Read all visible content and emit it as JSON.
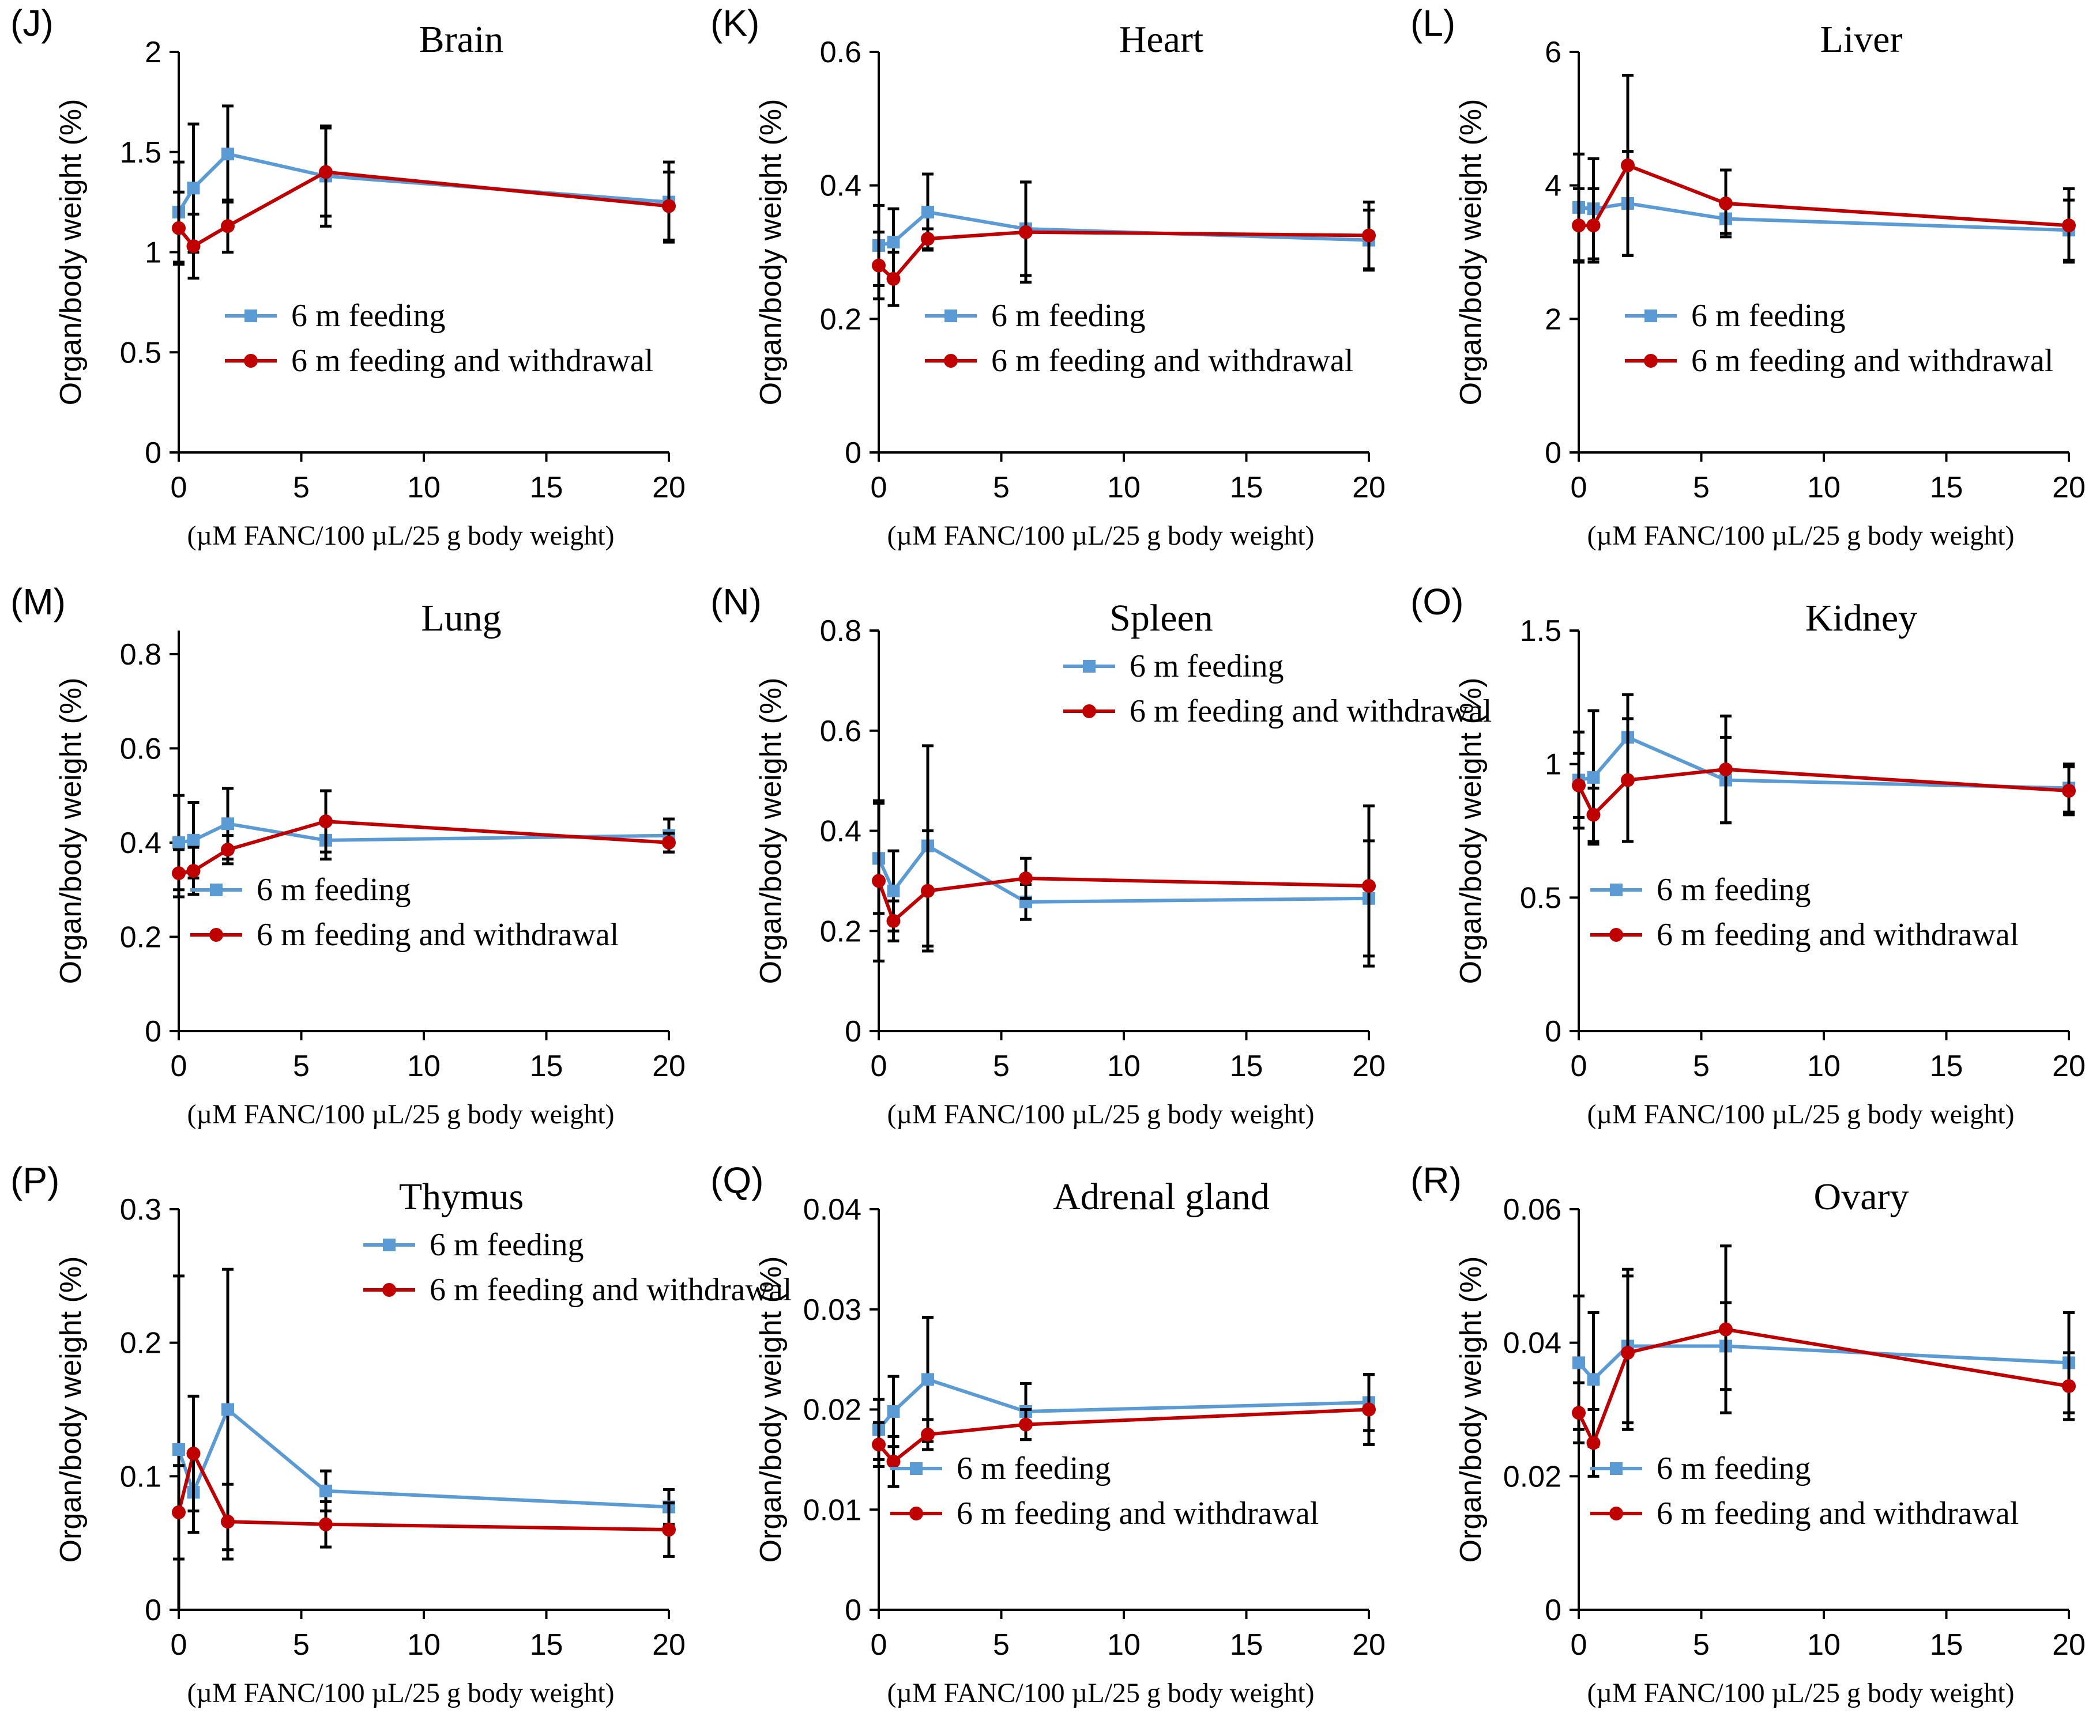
{
  "colors": {
    "feeding": "#5B9BD5",
    "withdrawal": "#C00000",
    "axis": "#000000",
    "error": "#000000"
  },
  "chart_data": [
    {
      "type": "line",
      "letter": "(J)",
      "title": "Brain",
      "ylabel": "Organ/body weight (%)",
      "xlabel": "(µM FANC/100 µL/25 g body weight)",
      "ylim": [
        0,
        2
      ],
      "yticks": [
        0,
        0.5,
        1,
        1.5,
        2
      ],
      "yticklabels": [
        "0",
        "0.5",
        "1",
        "1.5",
        "2"
      ],
      "xlim": [
        0,
        20
      ],
      "xticks": [
        0,
        5,
        10,
        15,
        20
      ],
      "xticklabels": [
        "0",
        "5",
        "10",
        "15",
        "20"
      ],
      "legend": "mid-left",
      "series": [
        {
          "name": "6 m feeding",
          "color": "#5B9BD5",
          "marker": "square",
          "x": [
            0,
            0.6,
            2,
            6,
            20
          ],
          "y": [
            1.2,
            1.32,
            1.49,
            1.38,
            1.25
          ],
          "err": [
            0.25,
            0.32,
            0.24,
            0.25,
            0.2
          ]
        },
        {
          "name": "6 m feeding and withdrawal",
          "color": "#C00000",
          "marker": "circle",
          "x": [
            0,
            0.6,
            2,
            6,
            20
          ],
          "y": [
            1.12,
            1.03,
            1.13,
            1.4,
            1.23
          ],
          "err": [
            0.18,
            0.16,
            0.13,
            0.22,
            0.17
          ]
        }
      ]
    },
    {
      "type": "line",
      "letter": "(K)",
      "title": "Heart",
      "ylabel": "Organ/body weight (%)",
      "xlabel": "(µM FANC/100 µL/25 g body weight)",
      "ylim": [
        0,
        0.6
      ],
      "yticks": [
        0,
        0.2,
        0.4,
        0.6
      ],
      "yticklabels": [
        "0",
        "0.2",
        "0.4",
        "0.6"
      ],
      "xlim": [
        0,
        20
      ],
      "xticks": [
        0,
        5,
        10,
        15,
        20
      ],
      "xticklabels": [
        "0",
        "5",
        "10",
        "15",
        "20"
      ],
      "legend": "mid-left",
      "series": [
        {
          "name": "6 m feeding",
          "color": "#5B9BD5",
          "marker": "square",
          "x": [
            0,
            0.6,
            2,
            6,
            20
          ],
          "y": [
            0.31,
            0.315,
            0.36,
            0.335,
            0.318
          ],
          "err": [
            0.06,
            0.05,
            0.057,
            0.07,
            0.045
          ]
        },
        {
          "name": "6 m feeding and withdrawal",
          "color": "#C00000",
          "marker": "circle",
          "x": [
            0,
            0.6,
            2,
            6,
            20
          ],
          "y": [
            0.28,
            0.26,
            0.32,
            0.33,
            0.325
          ],
          "err": [
            0.05,
            0.04,
            0.015,
            0.075,
            0.05
          ]
        }
      ]
    },
    {
      "type": "line",
      "letter": "(L)",
      "title": "Liver",
      "ylabel": "Organ/body weight (%)",
      "xlabel": "(µM FANC/100 µL/25 g body weight)",
      "ylim": [
        0,
        6
      ],
      "yticks": [
        0,
        2,
        4,
        6
      ],
      "yticklabels": [
        "0",
        "2",
        "4",
        "6"
      ],
      "xlim": [
        0,
        20
      ],
      "xticks": [
        0,
        5,
        10,
        15,
        20
      ],
      "xticklabels": [
        "0",
        "5",
        "10",
        "15",
        "20"
      ],
      "legend": "mid-left",
      "series": [
        {
          "name": "6 m feeding",
          "color": "#5B9BD5",
          "marker": "square",
          "x": [
            0,
            0.6,
            2,
            6,
            20
          ],
          "y": [
            3.67,
            3.65,
            3.73,
            3.5,
            3.33
          ],
          "err": [
            0.8,
            0.75,
            0.78,
            0.22,
            0.45
          ]
        },
        {
          "name": "6 m feeding and withdrawal",
          "color": "#C00000",
          "marker": "circle",
          "x": [
            0,
            0.6,
            2,
            6,
            20
          ],
          "y": [
            3.4,
            3.4,
            4.3,
            3.73,
            3.4
          ],
          "err": [
            0.55,
            0.55,
            1.35,
            0.5,
            0.55
          ]
        }
      ]
    },
    {
      "type": "line",
      "letter": "(M)",
      "title": "Lung",
      "ylabel": "Organ/body weight (%)",
      "xlabel": "(µM FANC/100 µL/25 g body weight)",
      "ylim": [
        0,
        0.85
      ],
      "yticks": [
        0,
        0.2,
        0.4,
        0.6,
        0.8
      ],
      "yticklabels": [
        "0",
        "0.2",
        "0.4",
        "0.6",
        "0.8"
      ],
      "xlim": [
        0,
        20
      ],
      "xticks": [
        0,
        5,
        10,
        15,
        20
      ],
      "xticklabels": [
        "0",
        "5",
        "10",
        "15",
        "20"
      ],
      "legend": "bottom-left",
      "series": [
        {
          "name": "6 m feeding",
          "color": "#5B9BD5",
          "marker": "square",
          "x": [
            0,
            0.6,
            2,
            6,
            20
          ],
          "y": [
            0.4,
            0.405,
            0.44,
            0.405,
            0.415
          ],
          "err": [
            0.1,
            0.08,
            0.075,
            0.04,
            0.035
          ]
        },
        {
          "name": "6 m feeding and withdrawal",
          "color": "#C00000",
          "marker": "circle",
          "x": [
            0,
            0.6,
            2,
            6,
            20
          ],
          "y": [
            0.335,
            0.34,
            0.385,
            0.445,
            0.4
          ],
          "err": [
            0.05,
            0.05,
            0.03,
            0.065,
            0.02
          ]
        }
      ]
    },
    {
      "type": "line",
      "letter": "(N)",
      "title": "Spleen",
      "ylabel": "Organ/body weight (%)",
      "xlabel": "(µM FANC/100 µL/25 g body weight)",
      "ylim": [
        0,
        0.8
      ],
      "yticks": [
        0,
        0.2,
        0.4,
        0.6,
        0.8
      ],
      "yticklabels": [
        "0",
        "0.2",
        "0.4",
        "0.6",
        "0.8"
      ],
      "xlim": [
        0,
        20
      ],
      "xticks": [
        0,
        5,
        10,
        15,
        20
      ],
      "xticklabels": [
        "0",
        "5",
        "10",
        "15",
        "20"
      ],
      "legend": "top-center",
      "series": [
        {
          "name": "6 m feeding",
          "color": "#5B9BD5",
          "marker": "square",
          "x": [
            0,
            0.6,
            2,
            6,
            20
          ],
          "y": [
            0.345,
            0.28,
            0.37,
            0.258,
            0.265
          ],
          "err": [
            0.11,
            0.08,
            0.2,
            0.035,
            0.115
          ]
        },
        {
          "name": "6 m feeding and withdrawal",
          "color": "#C00000",
          "marker": "circle",
          "x": [
            0,
            0.6,
            2,
            6,
            20
          ],
          "y": [
            0.3,
            0.22,
            0.28,
            0.305,
            0.29
          ],
          "err": [
            0.16,
            0.04,
            0.12,
            0.04,
            0.16
          ]
        }
      ]
    },
    {
      "type": "line",
      "letter": "(O)",
      "title": "Kidney",
      "ylabel": "Organ/body weight (%)",
      "xlabel": "(µM FANC/100 µL/25 g body weight)",
      "ylim": [
        0,
        1.5
      ],
      "yticks": [
        0,
        0.5,
        1,
        1.5
      ],
      "yticklabels": [
        "0",
        "0.5",
        "1",
        "1.5"
      ],
      "xlim": [
        0,
        20
      ],
      "xticks": [
        0,
        5,
        10,
        15,
        20
      ],
      "xticklabels": [
        "0",
        "5",
        "10",
        "15",
        "20"
      ],
      "legend": "bottom-left",
      "series": [
        {
          "name": "6 m feeding",
          "color": "#5B9BD5",
          "marker": "square",
          "x": [
            0,
            0.6,
            2,
            6,
            20
          ],
          "y": [
            0.94,
            0.95,
            1.1,
            0.94,
            0.91
          ],
          "err": [
            0.18,
            0.25,
            0.16,
            0.16,
            0.09
          ]
        },
        {
          "name": "6 m feeding and withdrawal",
          "color": "#C00000",
          "marker": "circle",
          "x": [
            0,
            0.6,
            2,
            6,
            20
          ],
          "y": [
            0.92,
            0.81,
            0.94,
            0.98,
            0.9
          ],
          "err": [
            0.12,
            0.1,
            0.23,
            0.2,
            0.09
          ]
        }
      ]
    },
    {
      "type": "line",
      "letter": "(P)",
      "title": "Thymus",
      "ylabel": "Organ/body weight (%)",
      "xlabel": "(µM FANC/100 µL/25 g body weight)",
      "ylim": [
        0,
        0.3
      ],
      "yticks": [
        0,
        0.1,
        0.2,
        0.3
      ],
      "yticklabels": [
        "0",
        "0.1",
        "0.2",
        "0.3"
      ],
      "xlim": [
        0,
        20
      ],
      "xticks": [
        0,
        5,
        10,
        15,
        20
      ],
      "xticklabels": [
        "0",
        "5",
        "10",
        "15",
        "20"
      ],
      "legend": "top-center",
      "series": [
        {
          "name": "6 m feeding",
          "color": "#5B9BD5",
          "marker": "square",
          "x": [
            0,
            0.6,
            2,
            6,
            20
          ],
          "y": [
            0.12,
            0.088,
            0.15,
            0.089,
            0.077
          ],
          "err": [
            0.13,
            0.03,
            0.105,
            0.015,
            0.013
          ]
        },
        {
          "name": "6 m feeding and withdrawal",
          "color": "#C00000",
          "marker": "circle",
          "x": [
            0,
            0.6,
            2,
            6,
            20
          ],
          "y": [
            0.073,
            0.117,
            0.066,
            0.064,
            0.06
          ],
          "err": [
            0.035,
            0.043,
            0.028,
            0.017,
            0.02
          ]
        }
      ]
    },
    {
      "type": "line",
      "letter": "(Q)",
      "title": "Adrenal gland",
      "ylabel": "Organ/body weight (%)",
      "xlabel": "(µM FANC/100 µL/25 g body weight)",
      "ylim": [
        0,
        0.04
      ],
      "yticks": [
        0,
        0.01,
        0.02,
        0.03,
        0.04
      ],
      "yticklabels": [
        "0",
        "0.01",
        "0.02",
        "0.03",
        "0.04"
      ],
      "xlim": [
        0,
        20
      ],
      "xticks": [
        0,
        5,
        10,
        15,
        20
      ],
      "xticklabels": [
        "0",
        "5",
        "10",
        "15",
        "20"
      ],
      "legend": "bottom-left",
      "series": [
        {
          "name": "6 m feeding",
          "color": "#5B9BD5",
          "marker": "square",
          "x": [
            0,
            0.6,
            2,
            6,
            20
          ],
          "y": [
            0.018,
            0.0198,
            0.023,
            0.0198,
            0.0207
          ],
          "err": [
            0.003,
            0.0035,
            0.0062,
            0.0028,
            0.0028
          ]
        },
        {
          "name": "6 m feeding and withdrawal",
          "color": "#C00000",
          "marker": "circle",
          "x": [
            0,
            0.6,
            2,
            6,
            20
          ],
          "y": [
            0.0165,
            0.0148,
            0.0175,
            0.0185,
            0.02
          ],
          "err": [
            0.0022,
            0.0025,
            0.0015,
            0.0015,
            0.0035
          ]
        }
      ]
    },
    {
      "type": "line",
      "letter": "(R)",
      "title": "Ovary",
      "ylabel": "Organ/body weight (%)",
      "xlabel": "(µM FANC/100 µL/25 g body weight)",
      "ylim": [
        0,
        0.06
      ],
      "yticks": [
        0,
        0.02,
        0.04,
        0.06
      ],
      "yticklabels": [
        "0",
        "0.02",
        "0.04",
        "0.06"
      ],
      "xlim": [
        0,
        20
      ],
      "xticks": [
        0,
        5,
        10,
        15,
        20
      ],
      "xticklabels": [
        "0",
        "5",
        "10",
        "15",
        "20"
      ],
      "legend": "bottom-left",
      "series": [
        {
          "name": "6 m feeding",
          "color": "#5B9BD5",
          "marker": "square",
          "x": [
            0,
            0.6,
            2,
            6,
            20
          ],
          "y": [
            0.037,
            0.0345,
            0.0395,
            0.0395,
            0.037
          ],
          "err": [
            0.01,
            0.01,
            0.0115,
            0.0065,
            0.0075
          ]
        },
        {
          "name": "6 m feeding and withdrawal",
          "color": "#C00000",
          "marker": "circle",
          "x": [
            0,
            0.6,
            2,
            6,
            20
          ],
          "y": [
            0.0295,
            0.025,
            0.0385,
            0.042,
            0.0335
          ],
          "err": [
            0.0045,
            0.005,
            0.0115,
            0.0125,
            0.005
          ]
        }
      ]
    }
  ]
}
